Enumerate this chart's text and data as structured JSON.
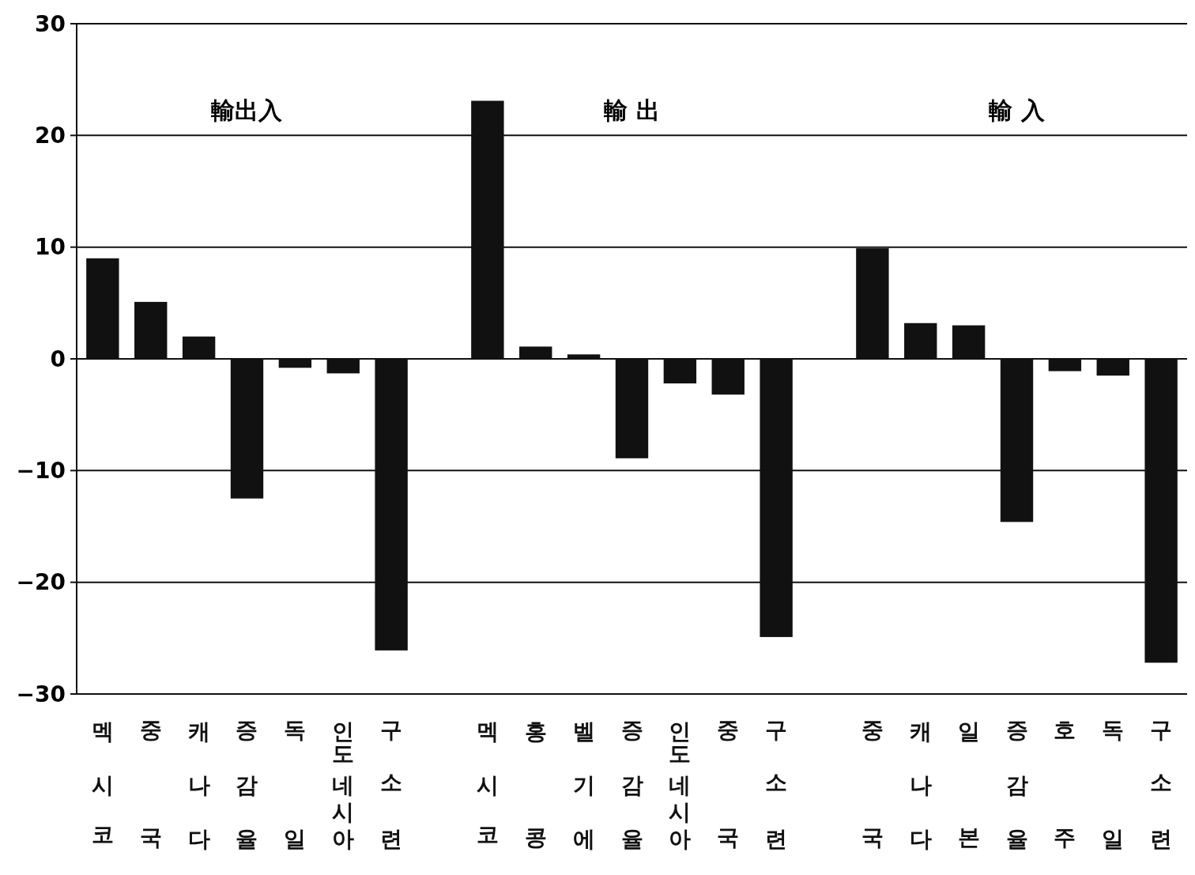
{
  "chart_data": {
    "type": "bar",
    "categories": [
      "멕시코",
      "중국",
      "캐나다",
      "증감율",
      "독일",
      "인도네시아",
      "구소련",
      null,
      "멕시코",
      "홍콩",
      "벨기에",
      "증감율",
      "인도네시아",
      "중국",
      "구소련",
      null,
      "중국",
      "캐나다",
      "일본",
      "증감율",
      "호주",
      "독일",
      "구소련"
    ],
    "values": [
      9.0,
      5.1,
      2.0,
      -12.5,
      -0.8,
      -1.3,
      -26.1,
      null,
      23.1,
      1.1,
      0.4,
      -8.9,
      -2.2,
      -3.2,
      -24.9,
      null,
      9.9,
      3.2,
      3.0,
      -14.6,
      -1.1,
      -1.5,
      -27.2
    ],
    "color": "#111111",
    "ylim": [
      -30,
      30
    ],
    "yticks": [
      -30,
      -20,
      -10,
      0,
      10,
      20,
      30
    ],
    "grid": "y",
    "annotations": [
      "輸出入",
      "輸 出",
      "輸 入"
    ]
  }
}
